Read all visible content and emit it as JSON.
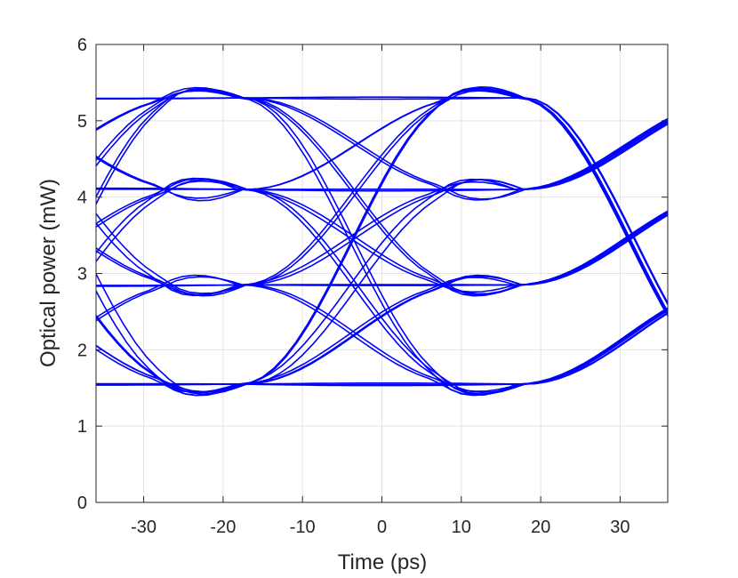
{
  "chart_data": {
    "type": "line",
    "subtype": "eye-diagram",
    "xlabel": "Time (ps)",
    "ylabel": "Optical power (mW)",
    "xlim": [
      -36,
      36
    ],
    "ylim": [
      0,
      6
    ],
    "xticks": [
      -30,
      -20,
      -10,
      0,
      10,
      20,
      30
    ],
    "yticks": [
      0,
      1,
      2,
      3,
      4,
      5,
      6
    ],
    "grid": true,
    "legend": "none",
    "series_color": "#0000ff",
    "unit_interval_ps": 35,
    "crossing_times_ps": [
      -17.5,
      17.5
    ],
    "levels_mw": [
      1.55,
      2.85,
      4.1,
      5.3
    ]
  }
}
